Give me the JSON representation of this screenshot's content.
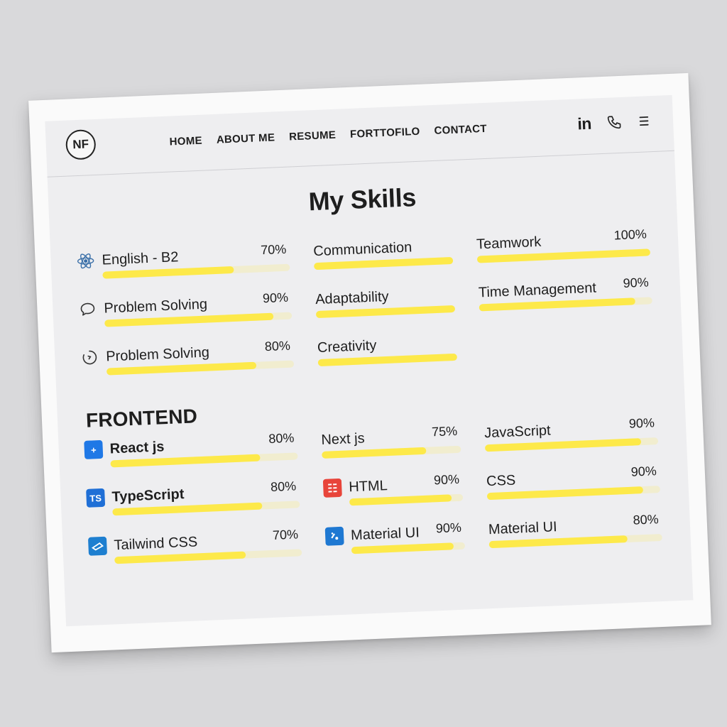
{
  "logo": {
    "text": "NF"
  },
  "nav": {
    "links": [
      "HOME",
      "ABOUT ME",
      "RESUME",
      "FORTTOFILO",
      "CONTACT"
    ],
    "icons": [
      {
        "name": "linkedin-icon",
        "text": "in"
      },
      {
        "name": "phone-icon"
      },
      {
        "name": "menu-icon"
      }
    ]
  },
  "page": {
    "title": "My Skills"
  },
  "soft_skills": [
    {
      "name": "English - B2",
      "pct": "70%",
      "value": 0.7,
      "icon": "atom-icon"
    },
    {
      "name": "Communication",
      "pct": "",
      "value": 1.0
    },
    {
      "name": "Teamwork",
      "pct": "100%",
      "value": 1.0
    },
    {
      "name": "Problem Solving",
      "pct": "90%",
      "value": 0.9,
      "icon": "speech-bubble-icon"
    },
    {
      "name": "Adaptability",
      "pct": "",
      "value": 1.0
    },
    {
      "name": "Time Management",
      "pct": "90%",
      "value": 0.9
    },
    {
      "name": "Problem Solving",
      "pct": "80%",
      "value": 0.8,
      "icon": "timer-icon"
    },
    {
      "name": "Creativity",
      "pct": "",
      "value": 1.0
    }
  ],
  "frontend": {
    "title": "FRONTEND",
    "skills": [
      {
        "name": "React js",
        "pct": "80%",
        "value": 0.8,
        "icon": "react-icon",
        "icon_text": "+",
        "icon_color": "#1f78e6"
      },
      {
        "name": "Next js",
        "pct": "75%",
        "value": 0.75
      },
      {
        "name": "JavaScript",
        "pct": "90%",
        "value": 0.9
      },
      {
        "name": "TypeScript",
        "pct": "80%",
        "value": 0.8,
        "icon": "typescript-icon",
        "icon_text": "TS",
        "icon_color": "#1f6fd6"
      },
      {
        "name": "HTML",
        "pct": "90%",
        "value": 0.9,
        "icon": "html-icon",
        "icon_color": "#e8443a"
      },
      {
        "name": "CSS",
        "pct": "90%",
        "value": 0.9
      },
      {
        "name": "Tailwind CSS",
        "pct": "70%",
        "value": 0.7,
        "icon": "tailwind-icon",
        "icon_color": "#1e7fd0"
      },
      {
        "name": "Material UI",
        "pct": "90%",
        "value": 0.9,
        "icon": "material-ui-icon",
        "icon_color": "#1e78d2"
      },
      {
        "name": "Material UI",
        "pct": "80%",
        "value": 0.8
      }
    ]
  },
  "colors": {
    "bar": "#fde94a",
    "text": "#1e1e1e",
    "background": "#eeeef0"
  }
}
